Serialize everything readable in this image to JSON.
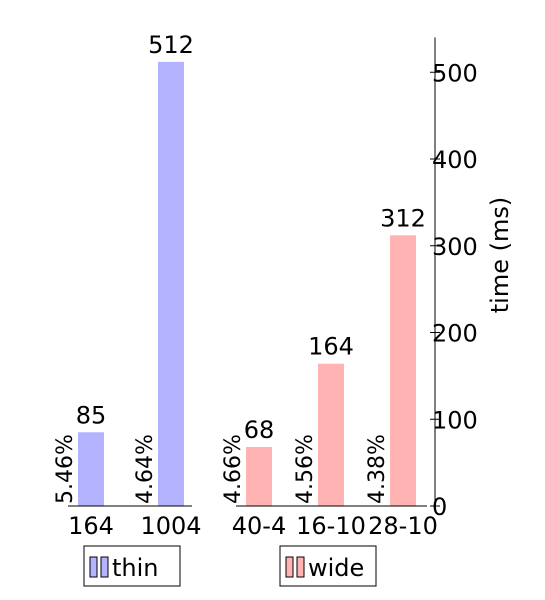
{
  "chart_data": {
    "type": "bar",
    "ylabel": "time (ms)",
    "yaxis_position": "right",
    "ylim": [
      0,
      540
    ],
    "yticks": [
      0,
      100,
      200,
      300,
      400,
      500
    ],
    "groups": [
      {
        "name": "thin",
        "color": "#b3b3ff",
        "categories": [
          "164",
          "1004"
        ],
        "values": [
          85,
          512
        ],
        "percentages": [
          "5.46%",
          "4.64%"
        ]
      },
      {
        "name": "wide",
        "color": "#ffb3b3",
        "categories": [
          "40-4",
          "16-10",
          "28-10"
        ],
        "values": [
          68,
          164,
          312
        ],
        "percentages": [
          "4.66%",
          "4.56%",
          "4.38%"
        ]
      }
    ],
    "legend": [
      {
        "label": "thin",
        "color": "#b3b3ff"
      },
      {
        "label": "wide",
        "color": "#ffb3b3"
      }
    ]
  }
}
